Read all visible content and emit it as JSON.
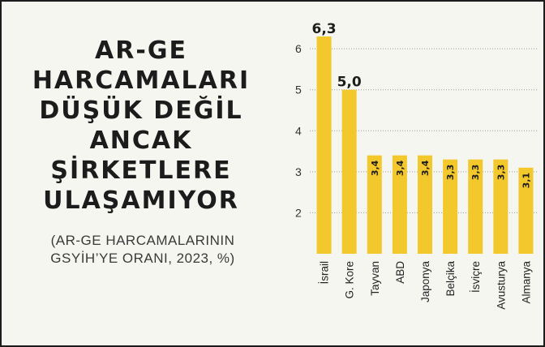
{
  "header": {
    "title": "AR-GE HARCAMALARI DÜŞÜK DEĞİL ANCAK ŞİRKETLERE ULAŞAMIYOR",
    "subtitle": "(AR-GE HARCAMALARININ GSYİH’YE ORANI, 2023, %)"
  },
  "colors": {
    "bar": "#f3c82c",
    "text": "#1c1c1c",
    "background": "#f6f6f1",
    "grid": "#9a9a9a"
  },
  "chart_data": {
    "type": "bar",
    "categories": [
      "İsrail",
      "G. Kore",
      "Tayvan",
      "ABD",
      "Japonya",
      "Belçika",
      "İsviçre",
      "Avusturya",
      "Almanya"
    ],
    "values": [
      6.3,
      5.0,
      3.4,
      3.4,
      3.4,
      3.3,
      3.3,
      3.3,
      3.1
    ],
    "data_labels": [
      "6,3",
      "5,0",
      "3,4",
      "3,4",
      "3,4",
      "3,3",
      "3,3",
      "3,3",
      "3,1"
    ],
    "y_ticks": [
      "2",
      "3",
      "4",
      "5",
      "6"
    ],
    "y_tick_values": [
      2,
      3,
      4,
      5,
      6
    ],
    "ylim": [
      1,
      6.3
    ],
    "grid": true,
    "grid_style": "dotted",
    "title": "AR-GE HARCAMALARI DÜŞÜK DEĞİL ANCAK ŞİRKETLERE ULAŞAMIYOR",
    "xlabel": "",
    "ylabel": ""
  }
}
